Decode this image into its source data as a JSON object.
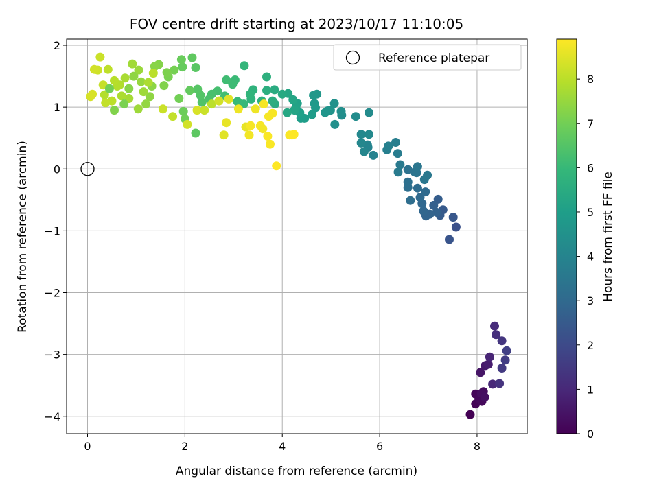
{
  "chart_data": {
    "type": "scatter",
    "title": "FOV centre drift starting at 2023/10/17 11:10:05",
    "xlabel": "Angular distance from reference (arcmin)",
    "ylabel": "Rotation from reference (arcmin)",
    "xlim": [
      -0.43,
      9.03
    ],
    "ylim": [
      -4.28,
      2.1
    ],
    "xticks": [
      0,
      2,
      4,
      6,
      8
    ],
    "yticks": [
      2,
      1,
      0,
      -1,
      -2,
      -3,
      -4
    ],
    "ytick_labels": [
      "2",
      "1",
      "0",
      "−1",
      "−2",
      "−3",
      "−4"
    ],
    "grid": true,
    "legend": {
      "position": "top-right",
      "entries": [
        {
          "label": "Reference platepar",
          "marker": "open-circle"
        }
      ]
    },
    "reference_point": {
      "x": 0,
      "y": 0
    },
    "colorbar": {
      "label": "Hours from first FF file",
      "colormap": "viridis",
      "range": [
        0,
        8.9
      ],
      "ticks": [
        0,
        1,
        2,
        3,
        4,
        5,
        6,
        7,
        8
      ]
    },
    "series_fields": [
      "x",
      "y",
      "hours"
    ],
    "points": [
      [
        7.86,
        -3.97,
        0.0
      ],
      [
        7.97,
        -3.8,
        0.05
      ],
      [
        7.97,
        -3.64,
        0.1
      ],
      [
        8.04,
        -3.72,
        0.15
      ],
      [
        8.1,
        -3.76,
        0.2
      ],
      [
        8.13,
        -3.6,
        0.25
      ],
      [
        8.09,
        -3.63,
        0.3
      ],
      [
        8.16,
        -3.69,
        0.35
      ],
      [
        8.07,
        -3.29,
        0.5
      ],
      [
        8.17,
        -3.18,
        0.6
      ],
      [
        8.23,
        -3.16,
        0.7
      ],
      [
        8.26,
        -3.04,
        0.9
      ],
      [
        8.32,
        -3.48,
        1.0
      ],
      [
        8.36,
        -2.54,
        1.1
      ],
      [
        8.39,
        -2.68,
        1.2
      ],
      [
        8.46,
        -3.47,
        1.3
      ],
      [
        8.51,
        -2.78,
        1.4
      ],
      [
        8.51,
        -3.22,
        1.5
      ],
      [
        8.58,
        -3.09,
        1.6
      ],
      [
        8.61,
        -2.94,
        1.7
      ],
      [
        7.57,
        -0.94,
        2.2
      ],
      [
        7.43,
        -1.14,
        2.3
      ],
      [
        7.51,
        -0.78,
        2.4
      ],
      [
        7.3,
        -0.66,
        2.5
      ],
      [
        7.24,
        -0.75,
        2.55
      ],
      [
        7.2,
        -0.49,
        2.6
      ],
      [
        7.11,
        -0.59,
        2.7
      ],
      [
        7.17,
        -0.7,
        2.75
      ],
      [
        7.03,
        -0.73,
        2.8
      ],
      [
        6.95,
        -0.76,
        2.85
      ],
      [
        6.9,
        -0.68,
        2.9
      ],
      [
        6.87,
        -0.56,
        2.95
      ],
      [
        6.83,
        -0.46,
        3.0
      ],
      [
        6.94,
        -0.37,
        3.05
      ],
      [
        6.78,
        -0.31,
        3.1
      ],
      [
        6.63,
        -0.51,
        3.15
      ],
      [
        6.58,
        -0.3,
        3.2
      ],
      [
        6.58,
        -0.21,
        3.25
      ],
      [
        6.58,
        -0.01,
        3.3
      ],
      [
        6.72,
        -0.05,
        3.35
      ],
      [
        6.76,
        -0.06,
        3.4
      ],
      [
        6.78,
        0.04,
        3.45
      ],
      [
        6.92,
        -0.17,
        3.5
      ],
      [
        6.98,
        -0.1,
        3.55
      ],
      [
        6.42,
        0.07,
        3.6
      ],
      [
        6.38,
        -0.05,
        3.65
      ],
      [
        6.37,
        0.25,
        3.7
      ],
      [
        6.33,
        0.43,
        3.75
      ],
      [
        6.15,
        0.31,
        3.8
      ],
      [
        6.18,
        0.37,
        3.85
      ],
      [
        5.87,
        0.22,
        3.9
      ],
      [
        5.76,
        0.35,
        3.95
      ],
      [
        5.75,
        0.39,
        4.0
      ],
      [
        5.68,
        0.28,
        4.05
      ],
      [
        5.62,
        0.42,
        4.1
      ],
      [
        5.62,
        0.56,
        4.15
      ],
      [
        5.78,
        0.56,
        4.2
      ],
      [
        5.78,
        0.91,
        4.25
      ],
      [
        5.51,
        0.85,
        4.3
      ],
      [
        5.22,
        0.87,
        4.35
      ],
      [
        5.21,
        0.93,
        4.4
      ],
      [
        5.08,
        0.72,
        4.45
      ],
      [
        5.07,
        1.06,
        4.5
      ],
      [
        4.99,
        0.95,
        4.55
      ],
      [
        4.93,
        0.94,
        4.6
      ],
      [
        4.88,
        0.91,
        4.65
      ],
      [
        4.71,
        1.21,
        4.7
      ],
      [
        4.64,
        1.19,
        4.75
      ],
      [
        4.66,
        1.06,
        4.8
      ],
      [
        4.68,
        0.99,
        4.85
      ],
      [
        4.61,
        0.88,
        4.9
      ],
      [
        4.46,
        0.82,
        4.95
      ],
      [
        4.38,
        0.82,
        5.0
      ],
      [
        4.36,
        0.91,
        5.05
      ],
      [
        4.31,
        1.06,
        5.1
      ],
      [
        4.28,
        1.0,
        5.15
      ],
      [
        4.25,
        0.95,
        5.2
      ],
      [
        4.22,
        1.12,
        5.25
      ],
      [
        4.12,
        1.22,
        5.3
      ],
      [
        4.1,
        0.91,
        5.35
      ],
      [
        4.0,
        1.21,
        5.4
      ],
      [
        3.85,
        1.05,
        5.45
      ],
      [
        3.84,
        1.28,
        5.5
      ],
      [
        3.8,
        1.1,
        5.55
      ],
      [
        3.68,
        1.27,
        5.6
      ],
      [
        3.68,
        1.49,
        5.65
      ],
      [
        3.58,
        1.1,
        5.7
      ],
      [
        3.4,
        1.28,
        5.75
      ],
      [
        3.36,
        1.13,
        5.8
      ],
      [
        3.34,
        1.21,
        5.85
      ],
      [
        3.22,
        1.67,
        5.9
      ],
      [
        3.21,
        1.05,
        5.95
      ],
      [
        3.08,
        1.09,
        6.0
      ],
      [
        3.03,
        1.44,
        6.05
      ],
      [
        2.98,
        1.37,
        6.1
      ],
      [
        2.85,
        1.44,
        6.15
      ],
      [
        2.82,
        1.18,
        6.2
      ],
      [
        2.67,
        1.26,
        6.25
      ],
      [
        2.55,
        1.21,
        6.3
      ],
      [
        2.5,
        1.13,
        6.35
      ],
      [
        2.35,
        1.08,
        6.45
      ],
      [
        2.32,
        1.19,
        6.5
      ],
      [
        2.26,
        1.29,
        6.55
      ],
      [
        2.22,
        1.64,
        6.6
      ],
      [
        2.22,
        0.58,
        6.65
      ],
      [
        2.15,
        1.8,
        6.7
      ],
      [
        2.1,
        1.27,
        6.75
      ],
      [
        1.95,
        1.65,
        6.8
      ],
      [
        1.93,
        1.77,
        6.85
      ],
      [
        1.97,
        0.93,
        6.9
      ],
      [
        2.0,
        0.81,
        6.95
      ],
      [
        1.88,
        1.14,
        7.0
      ],
      [
        1.78,
        1.6,
        7.05
      ],
      [
        1.66,
        1.49,
        7.1
      ],
      [
        1.63,
        1.56,
        7.15
      ],
      [
        1.57,
        1.35,
        7.2
      ],
      [
        1.46,
        1.69,
        7.25
      ],
      [
        1.38,
        1.66,
        7.3
      ],
      [
        1.32,
        1.34,
        7.35
      ],
      [
        1.28,
        1.17,
        7.4
      ],
      [
        1.2,
        1.05,
        7.45
      ],
      [
        1.1,
        1.41,
        7.5
      ],
      [
        1.05,
        1.6,
        7.55
      ],
      [
        1.04,
        0.97,
        7.6
      ],
      [
        0.92,
        1.7,
        7.65
      ],
      [
        0.85,
        1.14,
        7.7
      ],
      [
        0.77,
        1.47,
        7.75
      ],
      [
        0.7,
        1.18,
        7.8
      ],
      [
        0.66,
        1.36,
        7.85
      ],
      [
        0.61,
        1.34,
        7.9
      ],
      [
        0.55,
        1.43,
        7.95
      ],
      [
        0.5,
        1.1,
        8.0
      ],
      [
        0.42,
        1.61,
        8.05
      ],
      [
        0.37,
        1.07,
        8.1
      ],
      [
        0.32,
        1.36,
        8.15
      ],
      [
        0.26,
        1.81,
        8.2
      ],
      [
        0.21,
        1.6,
        8.25
      ],
      [
        0.14,
        1.61,
        8.3
      ],
      [
        0.06,
        1.17,
        8.35
      ],
      [
        0.1,
        1.21,
        8.4
      ],
      [
        0.35,
        1.2,
        7.9
      ],
      [
        0.45,
        1.3,
        7.0
      ],
      [
        0.55,
        0.95,
        7.2
      ],
      [
        0.75,
        1.05,
        7.1
      ],
      [
        0.85,
        1.3,
        7.3
      ],
      [
        0.95,
        1.5,
        7.4
      ],
      [
        1.15,
        1.25,
        7.6
      ],
      [
        1.25,
        1.4,
        7.8
      ],
      [
        1.35,
        1.55,
        8.0
      ],
      [
        1.55,
        0.97,
        8.2
      ],
      [
        1.75,
        0.85,
        8.1
      ],
      [
        2.05,
        0.72,
        8.3
      ],
      [
        2.25,
        0.95,
        8.4
      ],
      [
        2.4,
        0.95,
        8.2
      ],
      [
        2.55,
        1.05,
        8.0
      ],
      [
        2.7,
        1.1,
        8.3
      ],
      [
        2.8,
        0.55,
        8.5
      ],
      [
        2.85,
        0.75,
        8.6
      ],
      [
        2.9,
        1.13,
        8.5
      ],
      [
        3.1,
        0.97,
        8.7
      ],
      [
        3.25,
        0.68,
        8.6
      ],
      [
        3.32,
        0.55,
        8.75
      ],
      [
        3.35,
        0.7,
        8.8
      ],
      [
        3.45,
        0.97,
        8.7
      ],
      [
        3.55,
        0.7,
        8.8
      ],
      [
        3.6,
        0.65,
        8.75
      ],
      [
        3.62,
        1.05,
        8.8
      ],
      [
        3.7,
        0.53,
        8.85
      ],
      [
        3.72,
        0.85,
        8.8
      ],
      [
        3.75,
        0.4,
        8.85
      ],
      [
        3.8,
        0.9,
        8.82
      ],
      [
        3.88,
        0.05,
        8.9
      ],
      [
        4.15,
        0.55,
        8.85
      ],
      [
        4.2,
        0.55,
        8.88
      ],
      [
        4.24,
        0.56,
        8.9
      ]
    ]
  }
}
